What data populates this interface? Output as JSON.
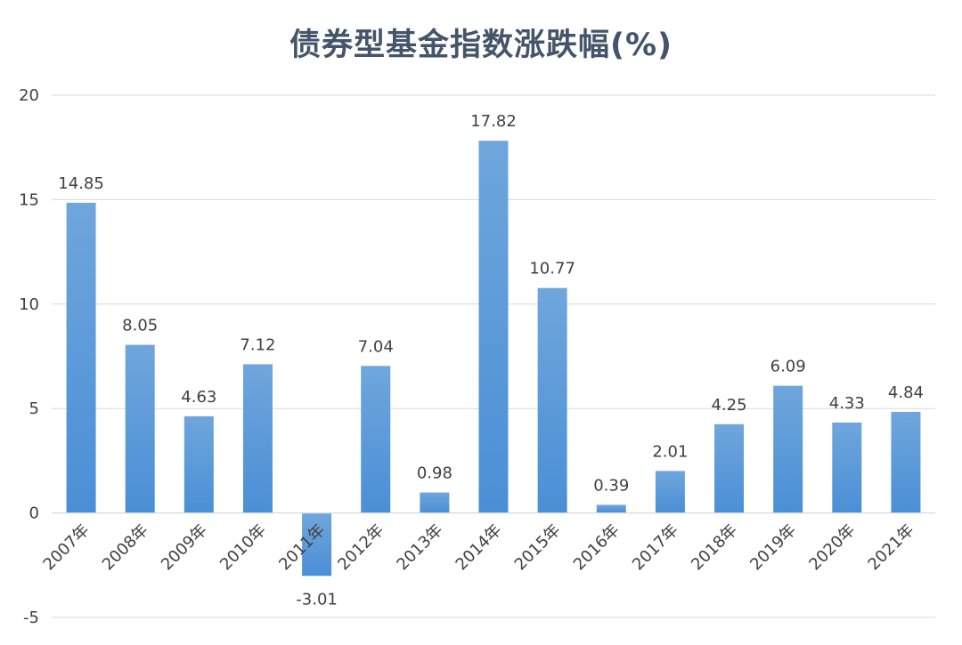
{
  "chart_data": {
    "type": "bar",
    "title": "债券型基金指数涨跌幅(%)",
    "categories": [
      "2007年",
      "2008年",
      "2009年",
      "2010年",
      "2011年",
      "2012年",
      "2013年",
      "2014年",
      "2015年",
      "2016年",
      "2017年",
      "2018年",
      "2019年",
      "2020年",
      "2021年"
    ],
    "values": [
      14.85,
      8.05,
      4.63,
      7.12,
      -3.01,
      7.04,
      0.98,
      17.82,
      10.77,
      0.39,
      2.01,
      4.25,
      6.09,
      4.33,
      4.84
    ],
    "data_labels": [
      "14.85",
      "8.05",
      "4.63",
      "7.12",
      "-3.01",
      "7.04",
      "0.98",
      "17.82",
      "10.77",
      "0.39",
      "2.01",
      "4.25",
      "6.09",
      "4.33",
      "4.84"
    ],
    "yticks": [
      -5,
      0,
      5,
      10,
      15,
      20
    ],
    "ylim": [
      -5,
      20
    ],
    "grid": true,
    "bar_color_top": "#6fa6dc",
    "bar_color_bottom": "#4a8fd6"
  }
}
